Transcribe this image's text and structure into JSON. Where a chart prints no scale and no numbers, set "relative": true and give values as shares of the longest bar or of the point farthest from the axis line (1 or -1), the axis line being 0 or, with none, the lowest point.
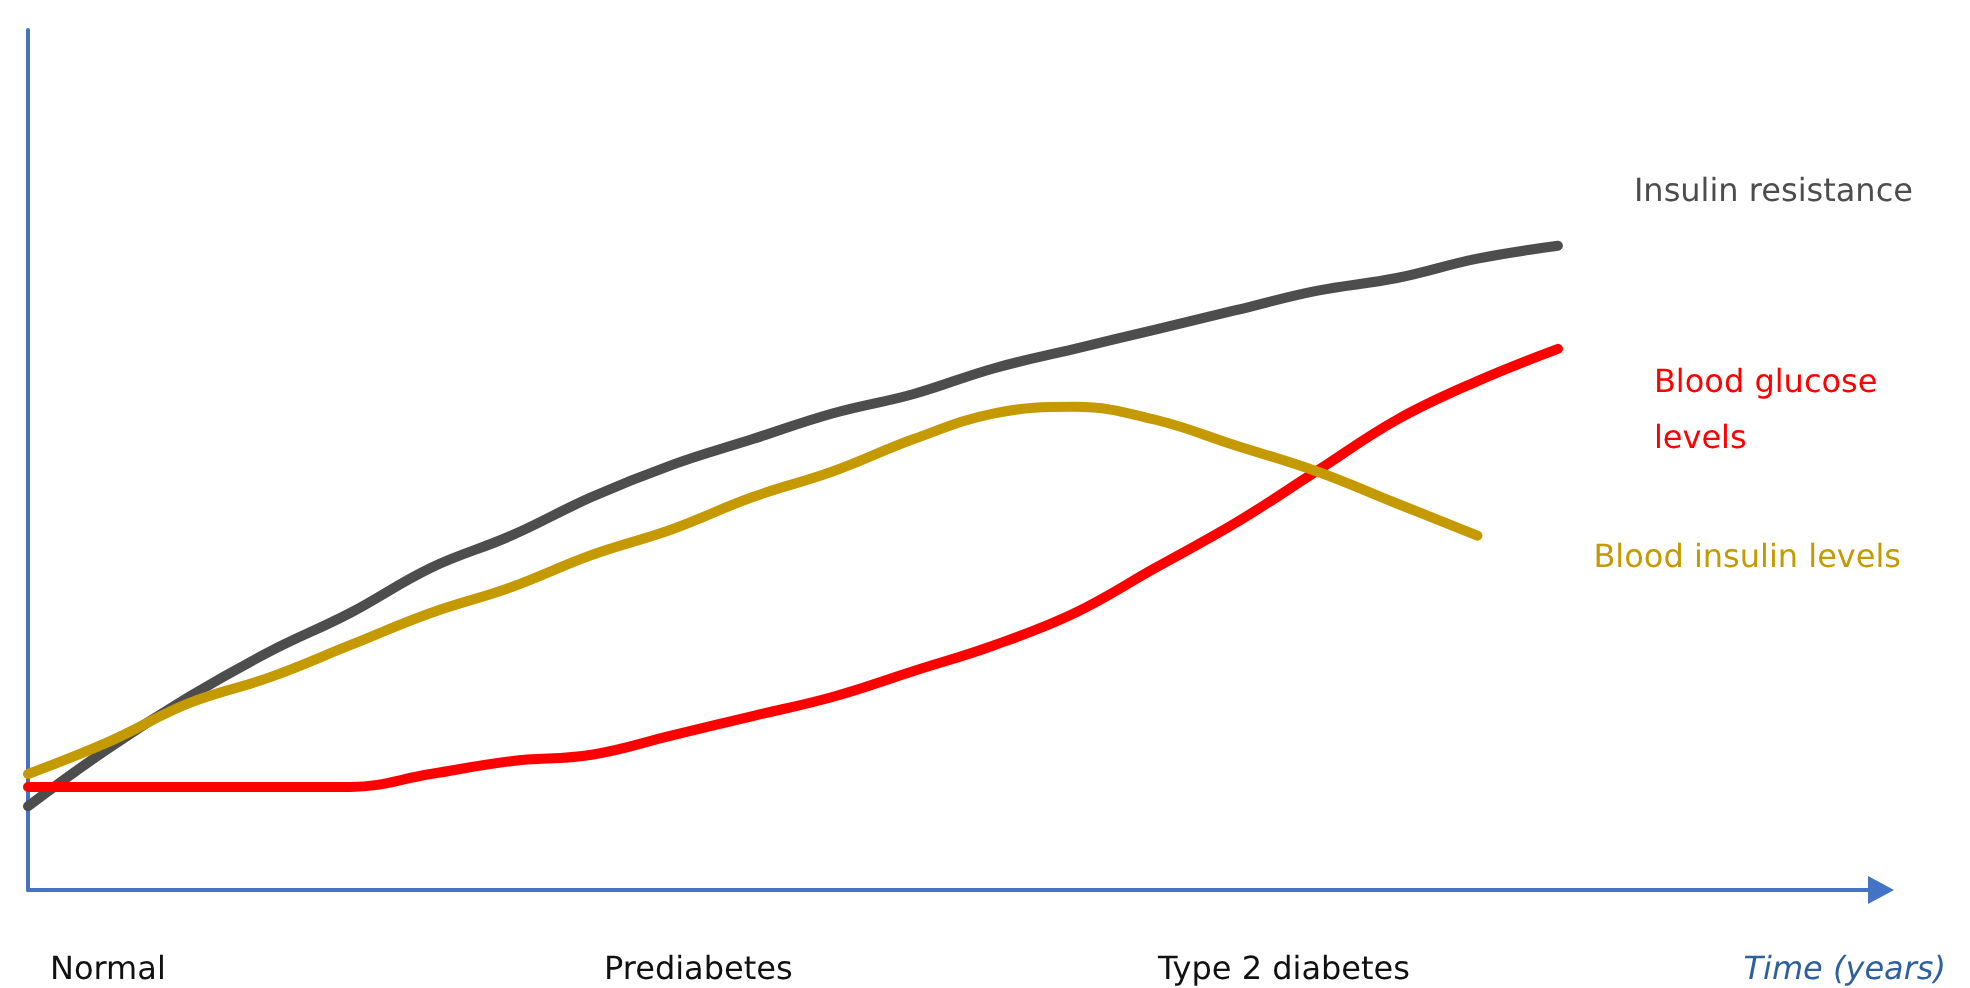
{
  "chart_data": {
    "type": "line",
    "relative": true,
    "xlabel": "Time (years)",
    "legend": false,
    "grid": false,
    "marker": "none",
    "line_style": "solid",
    "categories": [
      null,
      null,
      null,
      null,
      null,
      null,
      null,
      null,
      null,
      null,
      null,
      null,
      null,
      null,
      null,
      null,
      null,
      null,
      null,
      null,
      null,
      null,
      null,
      null
    ],
    "series": [
      {
        "name": "Insulin resistance",
        "color": "#4d4d4d",
        "values": [
          0.13,
          0.22,
          0.3,
          0.37,
          0.43,
          0.5,
          0.55,
          0.61,
          0.66,
          0.7,
          0.74,
          0.77,
          0.81,
          0.84,
          0.87,
          0.9,
          0.93,
          0.95,
          0.98,
          1.0,
          null,
          null,
          null,
          null
        ]
      },
      {
        "name": "Blood glucose levels",
        "color": "#ff0000",
        "values": [
          0.16,
          0.16,
          0.16,
          0.16,
          0.16,
          0.18,
          0.2,
          0.21,
          0.24,
          0.27,
          0.3,
          0.34,
          0.38,
          0.43,
          0.5,
          0.57,
          0.65,
          0.73,
          0.79,
          0.84,
          null,
          null,
          null,
          null
        ]
      },
      {
        "name": "Blood insulin levels",
        "color": "#c49a00",
        "values": [
          0.18,
          0.23,
          0.29,
          0.33,
          0.38,
          0.43,
          0.47,
          0.52,
          0.56,
          0.61,
          0.65,
          0.7,
          0.74,
          0.75,
          0.73,
          0.69,
          0.65,
          0.6,
          0.55,
          null,
          null,
          null,
          null,
          null
        ]
      }
    ],
    "annotations": [
      "Normal",
      "Prediabetes",
      "Type 2 diabetes"
    ]
  }
}
